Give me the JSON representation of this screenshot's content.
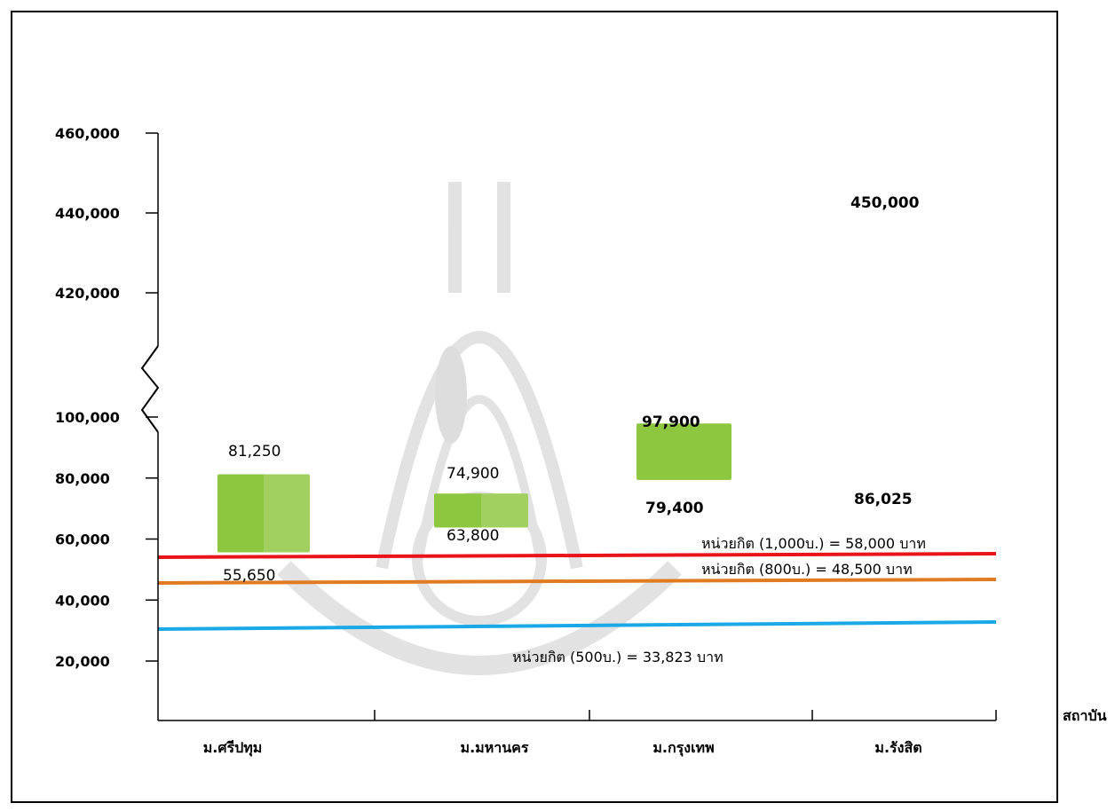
{
  "chart_data": {
    "type": "floating-bar",
    "axis_break": true,
    "x_axis_title": "สถาบัน",
    "y_ticks": [
      {
        "value": 20000,
        "label": "20,000"
      },
      {
        "value": 40000,
        "label": "40,000"
      },
      {
        "value": 60000,
        "label": "60,000"
      },
      {
        "value": 80000,
        "label": "80,000"
      },
      {
        "value": 100000,
        "label": "100,000"
      },
      {
        "value": 420000,
        "label": "420,000"
      },
      {
        "value": 440000,
        "label": "440,000"
      },
      {
        "value": 460000,
        "label": "460,000"
      }
    ],
    "categories": [
      "ม.ศรีปทุม",
      "ม.มหานคร",
      "ม.กรุงเทพ",
      "ม.รังสิต"
    ],
    "ranges": [
      {
        "category": "ม.ศรีปทุม",
        "min": 55650,
        "max": 81250,
        "min_label": "55,650",
        "max_label": "81,250"
      },
      {
        "category": "ม.มหานคร",
        "min": 63800,
        "max": 74900,
        "min_label": "63,800",
        "max_label": "74,900"
      },
      {
        "category": "ม.กรุงเทพ",
        "min": 79400,
        "max": 97900,
        "min_label": "79,400",
        "max_label": "97,900"
      },
      {
        "category": "ม.รังสิต",
        "min": 86025,
        "max": 450000,
        "min_label": "86,025",
        "max_label": "450,000"
      }
    ],
    "reference_lines": [
      {
        "value": 58000,
        "label": "หน่วยกิต (1,000บ.)  =  58,000 บาท",
        "color": "#e8141a"
      },
      {
        "value": 48500,
        "label": "หน่วยกิต (800บ.)  =  48,500  บาท",
        "color": "#e07b22"
      },
      {
        "value": 33823,
        "label": "หน่วยกิต (500บ.)  =  33,823 บาท",
        "color": "#1aa9e6"
      }
    ],
    "bar_color": "#8dc63f"
  }
}
